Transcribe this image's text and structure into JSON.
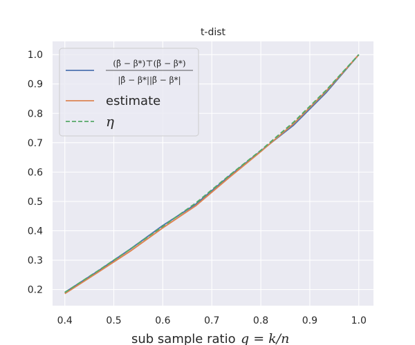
{
  "chart_data": {
    "type": "line",
    "title": "t-dist",
    "xlabel": "sub sample ratio",
    "xlabel_math": "q = k/n",
    "ylabel": "",
    "xlim": [
      0.375,
      1.03
    ],
    "ylim": [
      0.145,
      1.045
    ],
    "xticks": [
      "0.4",
      "0.5",
      "0.6",
      "0.7",
      "0.8",
      "0.9",
      "1.0"
    ],
    "yticks": [
      "0.2",
      "0.3",
      "0.4",
      "0.5",
      "0.6",
      "0.7",
      "0.8",
      "0.9",
      "1.0"
    ],
    "grid": true,
    "legend_position": "upper-left",
    "x": [
      0.4,
      0.467,
      0.533,
      0.6,
      0.667,
      0.733,
      0.8,
      0.867,
      0.933,
      1.0
    ],
    "series": [
      {
        "name": "(β̂ − β*)ᵀ(β̃ − β*) / |β̂ − β*||β̃ − β*|",
        "name_numerator": "(β̂ − β*)⊤(β̃ − β*)",
        "name_denominator": "|β̂ − β*||β̃ − β*|",
        "color": "#4c72b0",
        "style": "solid",
        "values": [
          0.19,
          0.262,
          0.337,
          0.418,
          0.49,
          0.583,
          0.672,
          0.76,
          0.87,
          1.0
        ]
      },
      {
        "name": "estimate",
        "color": "#dd8452",
        "style": "solid",
        "values": [
          0.186,
          0.258,
          0.33,
          0.41,
          0.485,
          0.578,
          0.67,
          0.765,
          0.875,
          1.0
        ]
      },
      {
        "name": "η",
        "color": "#55a868",
        "style": "dashed",
        "values": [
          0.19,
          0.263,
          0.337,
          0.415,
          0.494,
          0.585,
          0.674,
          0.77,
          0.878,
          1.0
        ]
      }
    ]
  },
  "colors": {
    "plot_background": "#eaeaf2",
    "grid": "#ffffff",
    "text": "#262626"
  }
}
